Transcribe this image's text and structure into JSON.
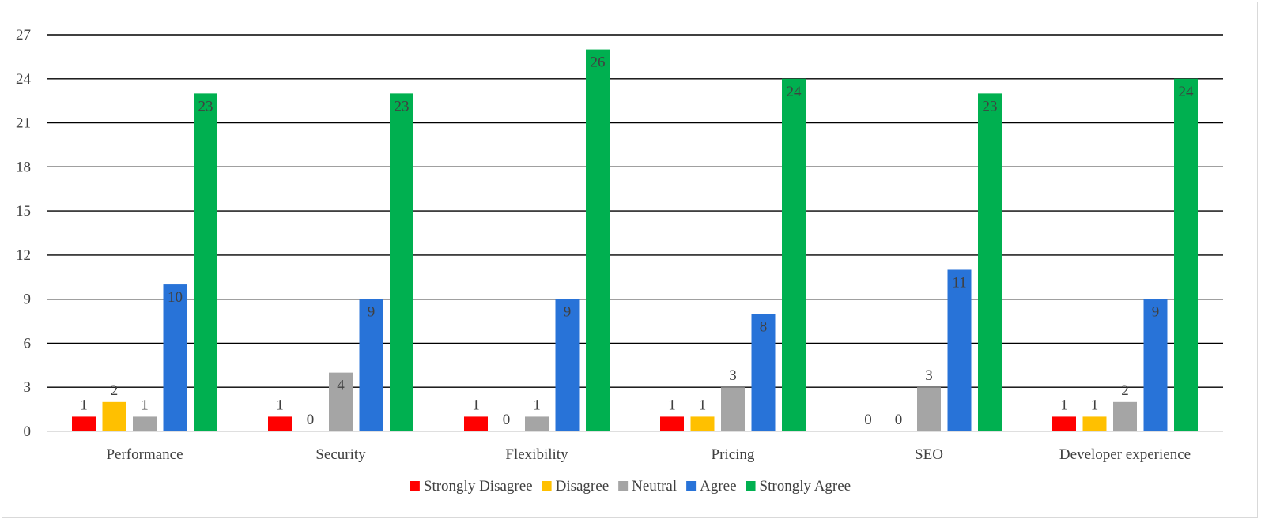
{
  "chart_data": {
    "type": "bar",
    "categories": [
      "Performance",
      "Security",
      "Flexibility",
      "Pricing",
      "SEO",
      "Developer experience"
    ],
    "series": [
      {
        "name": "Strongly Disagree",
        "color": "#ff0000",
        "values": [
          1,
          1,
          1,
          1,
          0,
          1
        ]
      },
      {
        "name": "Disagree",
        "color": "#ffc000",
        "values": [
          2,
          0,
          0,
          1,
          0,
          1
        ]
      },
      {
        "name": "Neutral",
        "color": "#a5a5a5",
        "values": [
          1,
          4,
          1,
          3,
          3,
          2
        ]
      },
      {
        "name": "Agree",
        "color": "#2873d8",
        "values": [
          10,
          9,
          9,
          8,
          11,
          9
        ]
      },
      {
        "name": "Strongly Agree",
        "color": "#00b050",
        "values": [
          23,
          23,
          26,
          24,
          23,
          24
        ]
      }
    ],
    "yticks": [
      "0",
      "3",
      "6",
      "9",
      "12",
      "15",
      "18",
      "21",
      "24",
      "27"
    ],
    "ylim": [
      0,
      27
    ],
    "grid": true,
    "legend": "bottom",
    "title": "",
    "xlabel": "",
    "ylabel": ""
  }
}
